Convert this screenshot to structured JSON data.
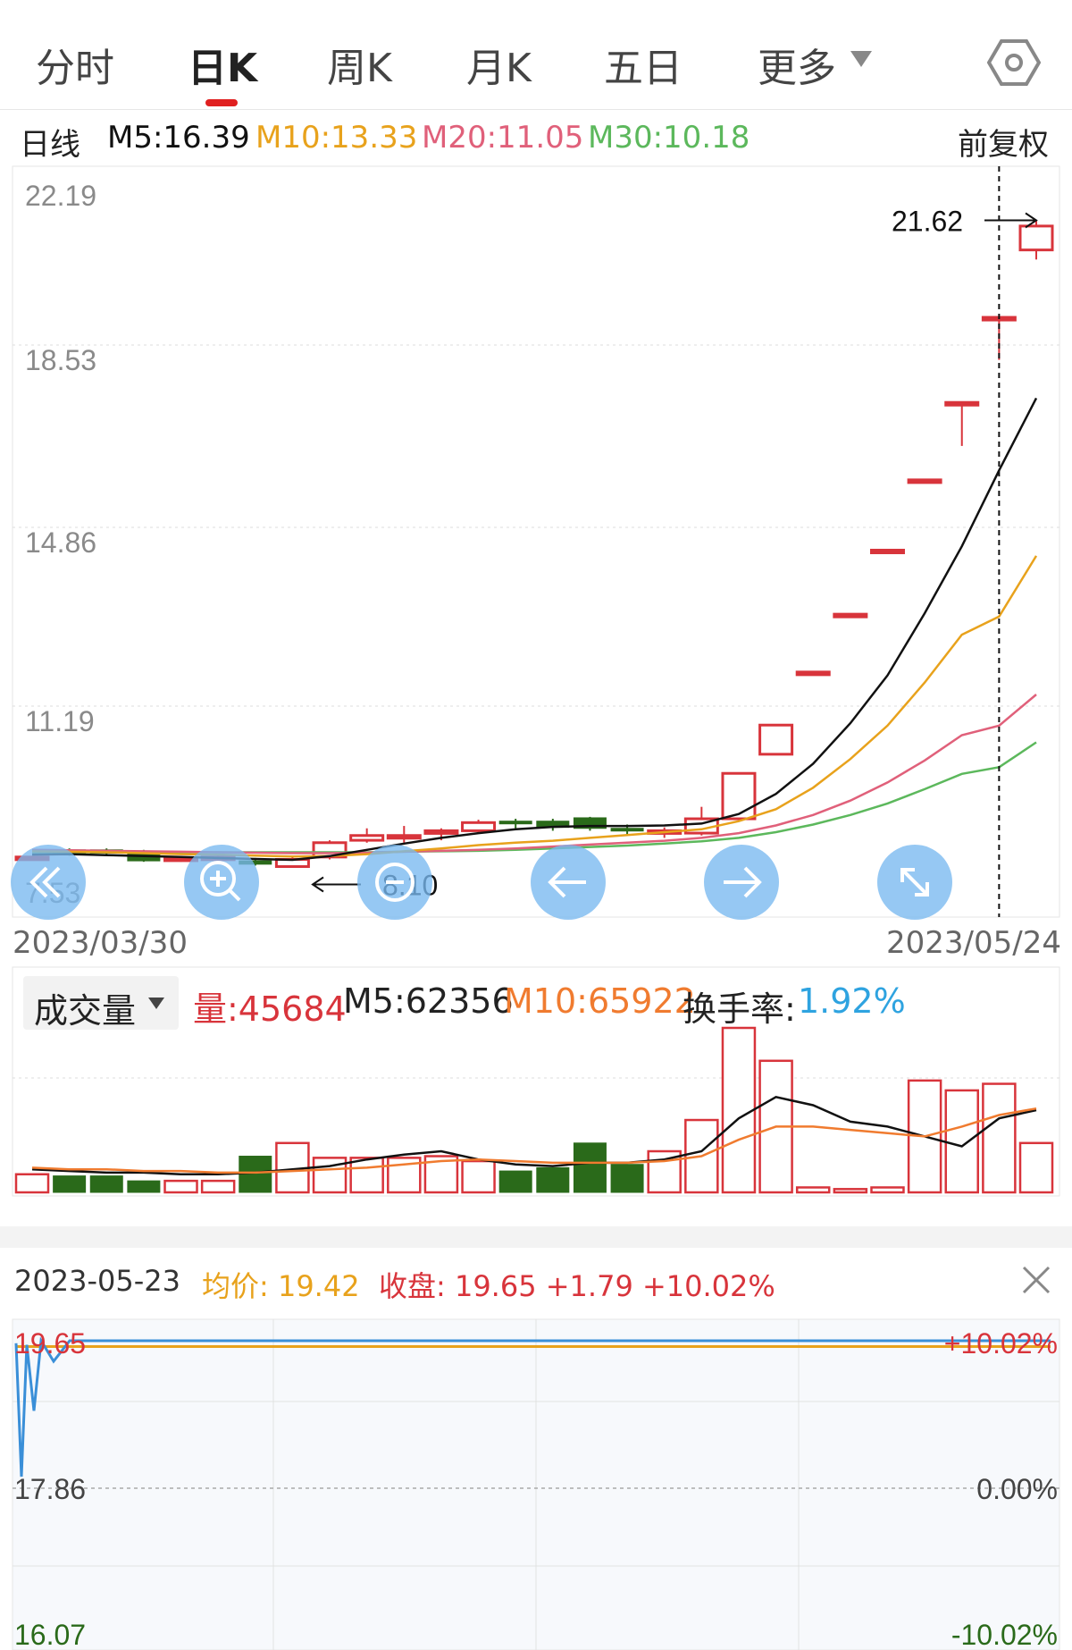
{
  "tabs": [
    {
      "label": "分时"
    },
    {
      "label": "日K"
    },
    {
      "label": "周K"
    },
    {
      "label": "月K"
    },
    {
      "label": "五日"
    },
    {
      "label": "更多"
    }
  ],
  "ma_row": {
    "period": "日线",
    "ma5": "M5:16.39",
    "ma10": "M10:13.33",
    "ma20": "M20:11.05",
    "ma30": "M30:10.18",
    "adjust": "前复权"
  },
  "colors": {
    "up": "#d8343b",
    "down": "#2a6a1a",
    "ma5": "#111111",
    "ma10": "#e8a21c",
    "ma20": "#e0607a",
    "ma30": "#5cb85c",
    "vol_ma10": "#f07b2f",
    "rate": "#2ea3e0",
    "avg": "#e8a21c",
    "price_line": "#3a8fd8"
  },
  "main_axis": {
    "labels": [
      "22.19",
      "18.53",
      "14.86",
      "11.19",
      "7.53"
    ],
    "high_label": "21.62",
    "low_label": "8.10",
    "start_date": "2023/03/30",
    "end_date": "2023/05/24"
  },
  "chart_data": {
    "type": "candlestick",
    "ylim": [
      7.53,
      22.19
    ],
    "dates_visible": [
      "2023/03/30",
      "2023/05/24"
    ],
    "candles": [
      {
        "o": 8.3,
        "c": 8.3,
        "h": 8.3,
        "l": 8.3
      },
      {
        "o": 8.45,
        "c": 8.36,
        "h": 8.48,
        "l": 8.33
      },
      {
        "o": 8.45,
        "c": 8.38,
        "h": 8.48,
        "l": 8.35
      },
      {
        "o": 8.42,
        "c": 8.22,
        "h": 8.45,
        "l": 8.2
      },
      {
        "o": 8.28,
        "c": 8.28,
        "h": 8.32,
        "l": 8.2
      },
      {
        "o": 8.3,
        "c": 8.3,
        "h": 8.34,
        "l": 8.18
      },
      {
        "o": 8.22,
        "c": 8.15,
        "h": 8.28,
        "l": 8.12
      },
      {
        "o": 8.1,
        "c": 8.25,
        "h": 8.3,
        "l": 8.1
      },
      {
        "o": 8.3,
        "c": 8.6,
        "h": 8.65,
        "l": 8.25
      },
      {
        "o": 8.65,
        "c": 8.75,
        "h": 8.9,
        "l": 8.6
      },
      {
        "o": 8.75,
        "c": 8.75,
        "h": 8.95,
        "l": 8.6
      },
      {
        "o": 8.85,
        "c": 8.85,
        "h": 8.9,
        "l": 8.65
      },
      {
        "o": 8.85,
        "c": 9.02,
        "h": 9.08,
        "l": 8.8
      },
      {
        "o": 9.05,
        "c": 9.0,
        "h": 9.1,
        "l": 8.9
      },
      {
        "o": 9.05,
        "c": 8.92,
        "h": 9.1,
        "l": 8.85
      },
      {
        "o": 9.12,
        "c": 8.9,
        "h": 9.14,
        "l": 8.85
      },
      {
        "o": 8.9,
        "c": 8.88,
        "h": 8.98,
        "l": 8.78
      },
      {
        "o": 8.85,
        "c": 8.85,
        "h": 8.92,
        "l": 8.7
      },
      {
        "o": 8.8,
        "c": 9.1,
        "h": 9.35,
        "l": 8.75
      },
      {
        "o": 9.1,
        "c": 10.05,
        "h": 10.05,
        "l": 9.1
      },
      {
        "o": 10.45,
        "c": 11.06,
        "h": 11.06,
        "l": 10.45
      },
      {
        "o": 12.17,
        "c": 12.17,
        "h": 12.17,
        "l": 12.17
      },
      {
        "o": 13.38,
        "c": 13.38,
        "h": 13.38,
        "l": 13.38
      },
      {
        "o": 14.72,
        "c": 14.72,
        "h": 14.72,
        "l": 14.72
      },
      {
        "o": 16.19,
        "c": 16.19,
        "h": 16.19,
        "l": 16.19
      },
      {
        "o": 17.81,
        "c": 17.81,
        "h": 17.81,
        "l": 16.9
      },
      {
        "o": 19.59,
        "c": 19.59,
        "h": 19.59,
        "l": 18.7
      },
      {
        "o": 21.0,
        "c": 21.5,
        "h": 21.62,
        "l": 20.8
      }
    ],
    "ma5": [
      8.35,
      8.36,
      8.34,
      8.32,
      8.3,
      8.28,
      8.26,
      8.24,
      8.32,
      8.45,
      8.58,
      8.7,
      8.8,
      8.88,
      8.93,
      8.95,
      8.95,
      8.96,
      9.0,
      9.2,
      9.62,
      10.25,
      11.1,
      12.1,
      13.4,
      14.8,
      16.39,
      17.9
    ],
    "ma10": [
      8.42,
      8.41,
      8.4,
      8.38,
      8.36,
      8.35,
      8.33,
      8.31,
      8.32,
      8.36,
      8.42,
      8.48,
      8.55,
      8.6,
      8.64,
      8.7,
      8.76,
      8.82,
      8.88,
      9.05,
      9.3,
      9.75,
      10.35,
      11.05,
      11.95,
      12.95,
      13.33,
      14.6
    ],
    "ma20": [
      8.45,
      8.44,
      8.43,
      8.42,
      8.41,
      8.4,
      8.39,
      8.38,
      8.38,
      8.39,
      8.41,
      8.43,
      8.45,
      8.48,
      8.52,
      8.56,
      8.6,
      8.64,
      8.7,
      8.8,
      8.96,
      9.18,
      9.48,
      9.86,
      10.32,
      10.85,
      11.05,
      11.7
    ],
    "ma30": [
      8.4,
      8.4,
      8.4,
      8.4,
      8.4,
      8.4,
      8.4,
      8.4,
      8.4,
      8.4,
      8.41,
      8.42,
      8.43,
      8.45,
      8.48,
      8.51,
      8.54,
      8.58,
      8.63,
      8.7,
      8.82,
      8.98,
      9.18,
      9.42,
      9.72,
      10.04,
      10.18,
      10.7
    ],
    "volume_panel": {
      "volume": [
        11,
        10,
        10,
        7,
        7,
        7,
        22,
        30,
        21,
        21,
        21,
        22,
        19,
        13,
        15,
        30,
        17,
        25,
        44,
        100,
        80,
        3,
        2,
        3,
        68,
        62,
        66,
        30
      ],
      "ma5": [
        14,
        13,
        12,
        12,
        11,
        11,
        12,
        14,
        16,
        20,
        23,
        25,
        20,
        17,
        16,
        18,
        18,
        20,
        25,
        45,
        58,
        53,
        43,
        40,
        34,
        28,
        45,
        50
      ],
      "ma10": [
        15,
        14,
        14,
        13,
        13,
        12,
        12,
        13,
        14,
        15,
        17,
        19,
        20,
        19,
        18,
        18,
        18,
        19,
        22,
        32,
        40,
        40,
        38,
        36,
        34,
        40,
        47,
        51
      ]
    }
  },
  "volume_row": {
    "selector": "成交量",
    "amount": "量:45684",
    "ma5": "M5:62356",
    "ma10": "M10:65922",
    "rate_label": "换手率:",
    "rate_value": "1.92%"
  },
  "intraday": {
    "date": "2023-05-23",
    "avg": "均价: 19.42",
    "close": "收盘: 19.65 +1.79 +10.02%",
    "axis_left": [
      "19.65",
      "17.86",
      "16.07"
    ],
    "axis_right": [
      "+10.02%",
      "0.00%",
      "-10.02%"
    ],
    "line_values": [
      19.62,
      18.0,
      19.65,
      18.8,
      19.65,
      19.4,
      19.65
    ],
    "open": 17.86,
    "ylim": [
      16.07,
      19.65
    ]
  }
}
